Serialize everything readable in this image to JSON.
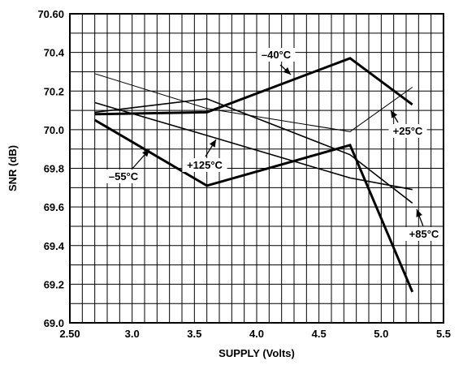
{
  "chart_data": {
    "type": "line",
    "xlabel": "SUPPLY (Volts)",
    "ylabel": "SNR (dB)",
    "xlim": [
      2.5,
      5.5
    ],
    "ylim": [
      69.0,
      70.6
    ],
    "grid": true,
    "x_ticks": [
      "2.50",
      "3.0",
      "3.5",
      "4.0",
      "4.5",
      "5.0",
      "5.5"
    ],
    "y_ticks": [
      "69.0",
      "69.2",
      "69.4",
      "69.6",
      "69.8",
      "70.0",
      "70.2",
      "70.4",
      "70.60"
    ],
    "series": [
      {
        "name": "–40°C",
        "x": [
          2.7,
          3.6,
          4.75,
          5.25
        ],
        "y": [
          70.08,
          70.09,
          70.37,
          70.13
        ],
        "weight": "bold"
      },
      {
        "name": "–55°C",
        "x": [
          2.7,
          3.6,
          4.75,
          5.25
        ],
        "y": [
          70.05,
          69.71,
          69.92,
          69.16
        ],
        "weight": "bold"
      },
      {
        "name": "+25°C",
        "x": [
          2.7,
          3.6,
          4.75,
          5.25
        ],
        "y": [
          70.29,
          70.11,
          69.99,
          70.22
        ],
        "weight": "thin"
      },
      {
        "name": "+85°C",
        "x": [
          2.7,
          3.6,
          4.75,
          5.25
        ],
        "y": [
          70.14,
          69.97,
          69.75,
          69.69
        ],
        "weight": "normal"
      },
      {
        "name": "+125°C",
        "x": [
          2.7,
          3.6,
          4.75,
          5.25
        ],
        "y": [
          70.09,
          70.16,
          69.87,
          69.62
        ],
        "weight": "normal"
      }
    ],
    "annotations": [
      {
        "series": "–40°C",
        "text": "–40°C"
      },
      {
        "series": "–55°C",
        "text": "–55°C"
      },
      {
        "series": "+25°C",
        "text": "+25°C"
      },
      {
        "series": "+85°C",
        "text": "+85°C"
      },
      {
        "series": "+125°C",
        "text": "+125°C"
      }
    ]
  }
}
